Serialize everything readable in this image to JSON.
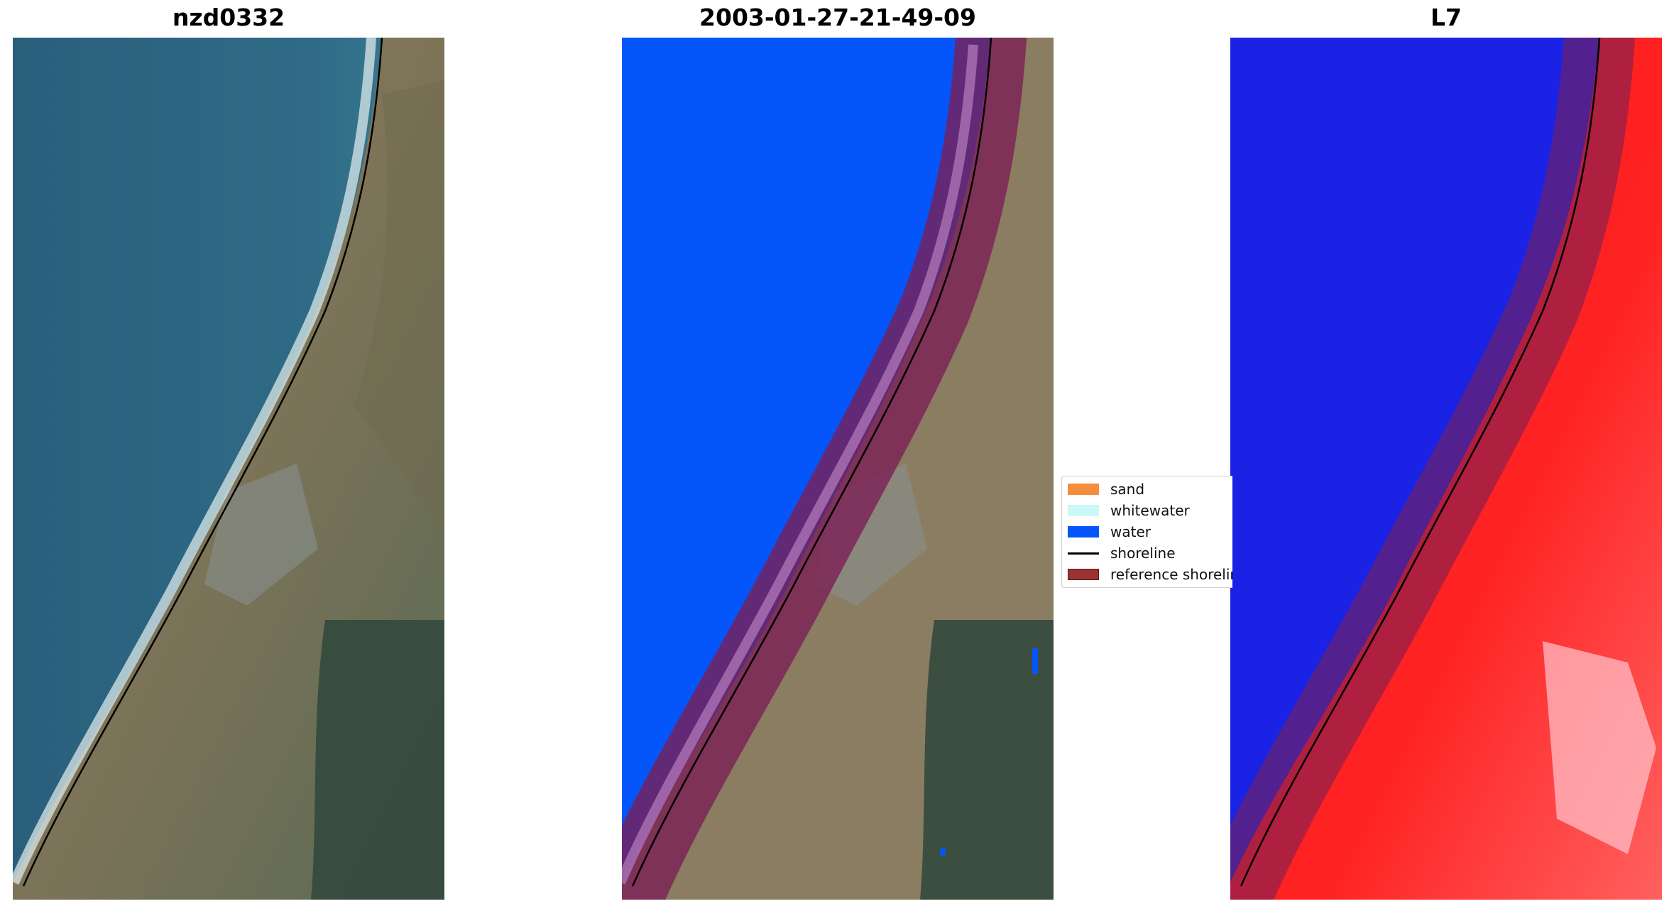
{
  "panels": [
    {
      "title": "nzd0332",
      "kind": "rgb"
    },
    {
      "title": "2003-01-27-21-49-09",
      "kind": "classified"
    },
    {
      "title": "L7",
      "kind": "index"
    }
  ],
  "legend": {
    "items": [
      {
        "label": "sand",
        "color": "#f58d3d",
        "type": "patch"
      },
      {
        "label": "whitewater",
        "color": "#ccf7f7",
        "type": "patch"
      },
      {
        "label": "water",
        "color": "#0455fa",
        "type": "patch"
      },
      {
        "label": "shoreline",
        "color": "#000000",
        "type": "line"
      },
      {
        "label": "reference shoreline",
        "color": "#9b3333",
        "type": "patch"
      }
    ]
  },
  "colors": {
    "ocean": "#2e6a86",
    "land": "#8f8266",
    "water_class": "#0455fa",
    "index_low": "#1a22e6",
    "index_high": "#ff1616",
    "buffer": "#7a1f55"
  }
}
